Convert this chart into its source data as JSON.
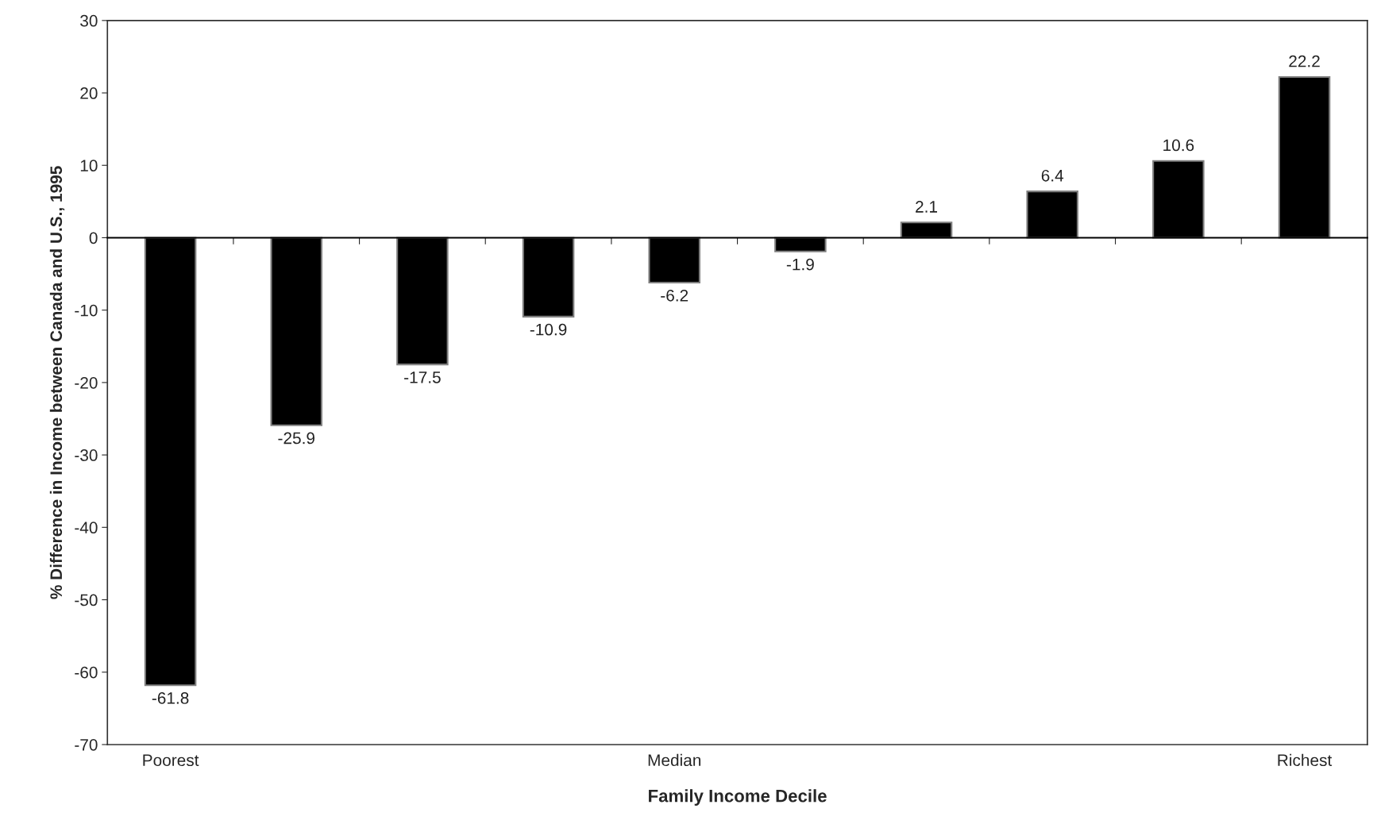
{
  "chart_data": {
    "type": "bar",
    "xlabel": "Family Income Decile",
    "ylabel": "% Difference in Income between Canada and U.S., 1995",
    "categories": [
      "Poorest",
      null,
      null,
      null,
      "Median",
      null,
      null,
      null,
      null,
      "Richest"
    ],
    "values": [
      -61.8,
      -25.9,
      -17.5,
      -10.9,
      -6.2,
      -1.9,
      2.1,
      6.4,
      10.6,
      22.2
    ],
    "color": "#000000",
    "ylim": [
      -70,
      30
    ],
    "yticks": [
      -70,
      -60,
      -50,
      -40,
      -30,
      -20,
      -10,
      0,
      10,
      20,
      30
    ],
    "data_labels": true,
    "legend": false
  }
}
